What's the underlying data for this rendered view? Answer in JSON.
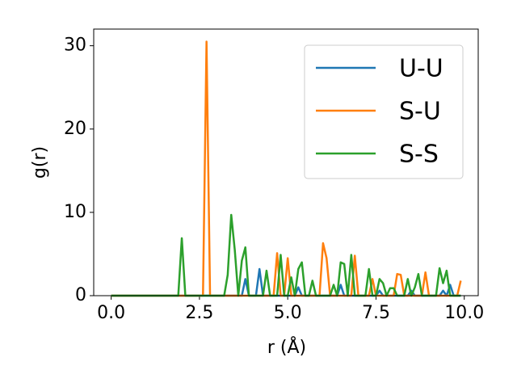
{
  "chart_data": {
    "type": "line",
    "xlabel": "r (Å)",
    "ylabel": "g(r)",
    "x": [
      0,
      0.1,
      0.2,
      0.3,
      0.4,
      0.5,
      0.6,
      0.7,
      0.8,
      0.9,
      1,
      1.1,
      1.2,
      1.3,
      1.4,
      1.5,
      1.6,
      1.7,
      1.8,
      1.9,
      2,
      2.1,
      2.2,
      2.3,
      2.4,
      2.5,
      2.6,
      2.7,
      2.8,
      2.9,
      3,
      3.1,
      3.2,
      3.3,
      3.4,
      3.5,
      3.6,
      3.7,
      3.8,
      3.9,
      4,
      4.1,
      4.2,
      4.3,
      4.4,
      4.5,
      4.6,
      4.7,
      4.8,
      4.9,
      5,
      5.1,
      5.2,
      5.3,
      5.4,
      5.5,
      5.6,
      5.7,
      5.8,
      5.9,
      6,
      6.1,
      6.2,
      6.3,
      6.4,
      6.5,
      6.6,
      6.7,
      6.8,
      6.9,
      7,
      7.1,
      7.2,
      7.3,
      7.4,
      7.5,
      7.6,
      7.7,
      7.8,
      7.9,
      8,
      8.1,
      8.2,
      8.3,
      8.4,
      8.5,
      8.6,
      8.7,
      8.8,
      8.9,
      9,
      9.1,
      9.2,
      9.3,
      9.4,
      9.5,
      9.6,
      9.7,
      9.8,
      9.9
    ],
    "series": [
      {
        "name": "U-U",
        "color": "#1f77b4",
        "values": [
          0,
          0,
          0,
          0,
          0,
          0,
          0,
          0,
          0,
          0,
          0,
          0,
          0,
          0,
          0,
          0,
          0,
          0,
          0,
          0,
          0,
          0,
          0,
          0,
          0,
          0,
          0,
          0,
          0,
          0,
          0,
          0,
          0,
          0,
          0,
          0,
          0,
          0,
          2.0,
          0,
          0,
          0,
          3.2,
          0,
          0,
          0,
          0,
          0,
          0,
          0,
          0,
          0,
          0,
          1.0,
          0,
          0,
          0,
          0,
          0,
          0,
          0,
          0,
          0,
          0,
          0,
          1.3,
          0,
          0,
          0,
          0,
          0,
          0,
          0,
          0,
          0,
          0,
          0.6,
          0,
          0,
          0,
          0,
          0,
          0,
          0,
          0,
          0.6,
          0,
          0,
          0,
          0,
          0,
          0,
          0,
          0,
          0.6,
          0,
          1.3,
          0,
          0,
          0
        ]
      },
      {
        "name": "S-U",
        "color": "#ff7f0e",
        "values": [
          0,
          0,
          0,
          0,
          0,
          0,
          0,
          0,
          0,
          0,
          0,
          0,
          0,
          0,
          0,
          0,
          0,
          0,
          0,
          0,
          0,
          0,
          0,
          0,
          0,
          0,
          0,
          30.5,
          0,
          0,
          0,
          0,
          0,
          0,
          0,
          0,
          0,
          0,
          0,
          0,
          0,
          0,
          0,
          0,
          0,
          0,
          0,
          5.1,
          0,
          0,
          4.5,
          0,
          0,
          0,
          0,
          0,
          0,
          0,
          0,
          0,
          6.3,
          4.5,
          0,
          0,
          0,
          0,
          0,
          0,
          0,
          4.8,
          0,
          0,
          0,
          0,
          2.0,
          0,
          0,
          0,
          0,
          0,
          0,
          2.6,
          2.5,
          0,
          0,
          0,
          0,
          0,
          0,
          2.8,
          0,
          0,
          0,
          0,
          0,
          0,
          0,
          0,
          0,
          1.8
        ]
      },
      {
        "name": "S-S",
        "color": "#2ca02c",
        "values": [
          0,
          0,
          0,
          0,
          0,
          0,
          0,
          0,
          0,
          0,
          0,
          0,
          0,
          0,
          0,
          0,
          0,
          0,
          0,
          0,
          6.9,
          0,
          0,
          0,
          0,
          0,
          0,
          0,
          0,
          0,
          0,
          0,
          0,
          2.5,
          9.7,
          5.5,
          0,
          4.2,
          5.8,
          0,
          0,
          0,
          0,
          0,
          3.0,
          0,
          0,
          0,
          4.9,
          0,
          0,
          2.2,
          0,
          3.2,
          4.0,
          0,
          0,
          1.8,
          0,
          0,
          0,
          0,
          0,
          1.3,
          0,
          4.0,
          3.8,
          0,
          4.9,
          0,
          0,
          0,
          0,
          3.2,
          0,
          0,
          2.0,
          1.5,
          0,
          0.9,
          0.9,
          0,
          0,
          0,
          2.0,
          0,
          1.0,
          2.6,
          0,
          0,
          0,
          0,
          0,
          3.3,
          1.5,
          3.0,
          0,
          0,
          0,
          0
        ]
      }
    ],
    "xlim": [
      -0.495,
      10.395
    ],
    "ylim": [
      0,
      32
    ],
    "xticks": [
      {
        "value": 0,
        "label": "0.0"
      },
      2.5,
      {
        "value": 5,
        "label": "5.0"
      },
      7.5,
      {
        "value": 10,
        "label": "10.0"
      }
    ],
    "yticks": [
      0,
      10,
      20,
      30
    ],
    "legend": "upper right"
  }
}
